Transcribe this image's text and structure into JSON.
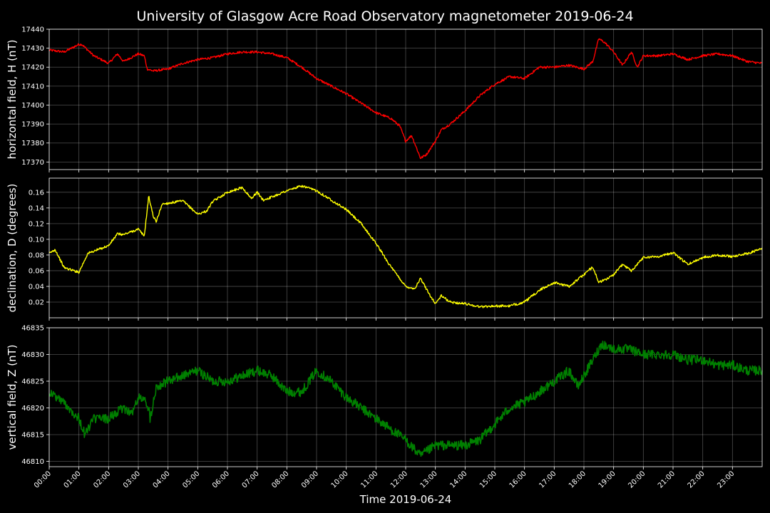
{
  "chart_data": {
    "type": "line",
    "title": "University of Glasgow Acre Road Observatory magnetometer 2019-06-24",
    "xlabel": "Time 2019-06-24",
    "x_ticks": [
      "00:00",
      "01:00",
      "02:00",
      "03:00",
      "04:00",
      "05:00",
      "06:00",
      "07:00",
      "08:00",
      "09:00",
      "10:00",
      "11:00",
      "12:00",
      "13:00",
      "14:00",
      "15:00",
      "16:00",
      "17:00",
      "18:00",
      "19:00",
      "20:00",
      "21:00",
      "22:00",
      "23:00"
    ],
    "xlim": [
      0,
      24
    ],
    "x_unit": "hours",
    "grid": true,
    "background": "#000000",
    "panels": [
      {
        "ylabel": "horizontal field, H (nT)",
        "color": "#ff0000",
        "ylim": [
          17366,
          17440
        ],
        "yticks": [
          17370,
          17380,
          17390,
          17400,
          17410,
          17420,
          17430,
          17440
        ],
        "noise": 0.6,
        "x": [
          0,
          0.5,
          1,
          1.1,
          1.5,
          2,
          2.3,
          2.5,
          3,
          3.2,
          3.3,
          3.5,
          4,
          4.5,
          5,
          5.5,
          6,
          6.5,
          7,
          7.5,
          8,
          8.5,
          9,
          9.5,
          10,
          10.5,
          11,
          11.5,
          11.8,
          12,
          12.2,
          12.5,
          12.7,
          13,
          13.2,
          13.5,
          14,
          14.5,
          15,
          15.5,
          16,
          16.5,
          17,
          17.5,
          18,
          18.3,
          18.5,
          18.7,
          19,
          19.3,
          19.6,
          19.8,
          20,
          20.5,
          21,
          21.5,
          22,
          22.5,
          23,
          23.5,
          24
        ],
        "values": [
          17429,
          17428,
          17432,
          17432,
          17426,
          17422,
          17427,
          17423,
          17427,
          17426,
          17419,
          17418,
          17419,
          17422,
          17424,
          17425,
          17427,
          17428,
          17428,
          17427,
          17425,
          17420,
          17414,
          17410,
          17406,
          17401,
          17396,
          17393,
          17389,
          17381,
          17384,
          17372,
          17374,
          17381,
          17387,
          17390,
          17397,
          17405,
          17411,
          17415,
          17414,
          17420,
          17420,
          17421,
          17419,
          17423,
          17435,
          17433,
          17428,
          17421,
          17428,
          17420,
          17426,
          17426,
          17427,
          17424,
          17426,
          17427,
          17426,
          17423,
          17422
        ]
      },
      {
        "ylabel": "declination, D (degrees)",
        "color": "#ffff00",
        "ylim": [
          0.0,
          0.178
        ],
        "yticks": [
          0.02,
          0.04,
          0.06,
          0.08,
          0.1,
          0.12,
          0.14,
          0.16
        ],
        "yticklabels": [
          "0.02",
          "0.04",
          "0.06",
          "0.08",
          "0.10",
          "0.12",
          "0.14",
          "0.16"
        ],
        "noise": 0.0015,
        "x": [
          0,
          0.2,
          0.5,
          1,
          1.3,
          2,
          2.3,
          2.5,
          3,
          3.2,
          3.35,
          3.5,
          3.6,
          3.8,
          4,
          4.5,
          5,
          5.3,
          5.5,
          6,
          6.5,
          6.8,
          7,
          7.2,
          7.5,
          8,
          8.5,
          9,
          9.5,
          10,
          10.5,
          11,
          11.5,
          12,
          12.3,
          12.5,
          12.8,
          13,
          13.2,
          13.5,
          14,
          14.5,
          15,
          15.5,
          16,
          16.5,
          17,
          17.5,
          18,
          18.3,
          18.5,
          18.8,
          19,
          19.3,
          19.6,
          20,
          20.5,
          21,
          21.5,
          22,
          22.5,
          23,
          23.5,
          24
        ],
        "values": [
          0.082,
          0.087,
          0.064,
          0.058,
          0.082,
          0.092,
          0.107,
          0.106,
          0.113,
          0.104,
          0.155,
          0.13,
          0.122,
          0.145,
          0.146,
          0.149,
          0.132,
          0.136,
          0.148,
          0.16,
          0.166,
          0.152,
          0.16,
          0.15,
          0.154,
          0.162,
          0.168,
          0.162,
          0.15,
          0.138,
          0.12,
          0.095,
          0.065,
          0.04,
          0.037,
          0.05,
          0.03,
          0.018,
          0.028,
          0.02,
          0.018,
          0.014,
          0.015,
          0.015,
          0.02,
          0.035,
          0.045,
          0.04,
          0.055,
          0.065,
          0.045,
          0.05,
          0.055,
          0.068,
          0.06,
          0.077,
          0.078,
          0.083,
          0.068,
          0.077,
          0.08,
          0.078,
          0.082,
          0.088
        ]
      },
      {
        "ylabel": "vertical field, Z (nT)",
        "color": "#008000",
        "ylim": [
          46809,
          46835
        ],
        "yticks": [
          46810,
          46815,
          46820,
          46825,
          46830,
          46835
        ],
        "noise": 0.9,
        "x": [
          0,
          0.5,
          1,
          1.2,
          1.5,
          2,
          2.5,
          2.8,
          3,
          3.3,
          3.4,
          3.6,
          4,
          4.5,
          5,
          5.5,
          6,
          6.5,
          7,
          7.5,
          8,
          8.5,
          9,
          9.5,
          10,
          10.5,
          11,
          11.5,
          12,
          12.5,
          13,
          13.5,
          14,
          14.5,
          15,
          15.5,
          16,
          16.5,
          17,
          17.5,
          17.8,
          18,
          18.3,
          18.6,
          19,
          19.5,
          20,
          20.5,
          21,
          21.5,
          22,
          22.5,
          23,
          23.5,
          24
        ],
        "values": [
          46823,
          46821,
          46818,
          46815,
          46818,
          46818,
          46820,
          46819,
          46822,
          46821,
          46818,
          46824,
          46825,
          46826,
          46827,
          46825,
          46825,
          46826,
          46827,
          46826,
          46823,
          46823,
          46827,
          46825,
          46822,
          46820,
          46818,
          46816,
          46814,
          46811,
          46813,
          46813,
          46813,
          46814,
          46817,
          46820,
          46821,
          46823,
          46825,
          46827,
          46824,
          46826,
          46829,
          46832,
          46831,
          46831,
          46830,
          46830,
          46830,
          46829,
          46829,
          46828,
          46828,
          46827,
          46827
        ]
      }
    ]
  }
}
